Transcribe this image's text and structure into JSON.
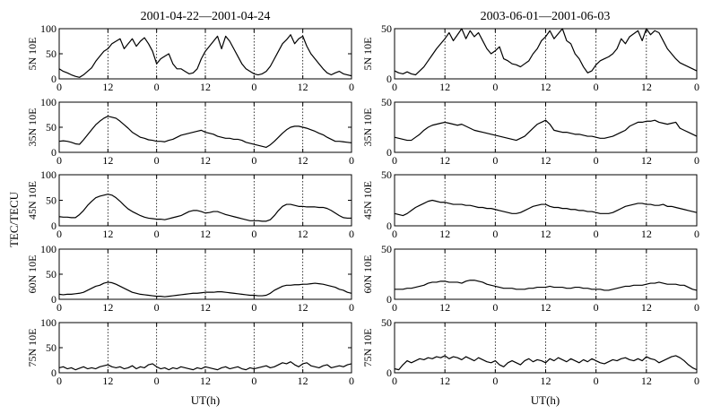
{
  "figure": {
    "ylabel": "TEC/TECU",
    "columns": [
      {
        "title": "2001-04-22—2001-04-24",
        "xlabel": "UT(h)"
      },
      {
        "title": "2003-06-01—2001-06-03",
        "xlabel": "UT(h)"
      }
    ]
  },
  "chart_data": [
    {
      "type": "line",
      "column": 0,
      "row": 0,
      "ylabel": "5N 10E",
      "xlim": [
        0,
        72
      ],
      "ylim": [
        0,
        100
      ],
      "xticks": [
        0,
        12,
        24,
        36,
        48,
        60,
        72
      ],
      "xtick_labels": [
        "0",
        "12",
        "0",
        "12",
        "0",
        "12",
        "0"
      ],
      "yticks": [
        0,
        50,
        100
      ],
      "ytick_labels": [
        "0",
        "50",
        "100"
      ],
      "dotted_x": [
        12,
        24,
        36,
        48,
        60
      ],
      "series": [
        {
          "values": [
            20,
            15,
            12,
            8,
            5,
            3,
            8,
            15,
            22,
            35,
            45,
            55,
            60,
            70,
            75,
            80,
            60,
            70,
            80,
            65,
            75,
            82,
            70,
            55,
            30,
            40,
            45,
            50,
            30,
            20,
            20,
            15,
            10,
            12,
            20,
            40,
            55,
            65,
            75,
            85,
            60,
            85,
            75,
            60,
            45,
            30,
            20,
            15,
            10,
            8,
            10,
            15,
            25,
            40,
            55,
            70,
            78,
            88,
            70,
            80,
            85,
            65,
            50,
            40,
            30,
            20,
            12,
            8,
            12,
            15,
            10,
            8,
            6
          ]
        }
      ]
    },
    {
      "type": "line",
      "column": 0,
      "row": 1,
      "ylabel": "35N 10E",
      "xlim": [
        0,
        72
      ],
      "ylim": [
        0,
        100
      ],
      "xticks": [
        0,
        12,
        24,
        36,
        48,
        60,
        72
      ],
      "xtick_labels": [
        "0",
        "12",
        "0",
        "12",
        "0",
        "12",
        "0"
      ],
      "yticks": [
        0,
        50,
        100
      ],
      "ytick_labels": [
        "0",
        "50",
        "100"
      ],
      "dotted_x": [
        12,
        24,
        36,
        48,
        60
      ],
      "series": [
        {
          "values": [
            22,
            23,
            22,
            20,
            17,
            16,
            25,
            35,
            45,
            55,
            62,
            68,
            72,
            70,
            68,
            62,
            55,
            48,
            40,
            35,
            30,
            28,
            25,
            24,
            22,
            22,
            21,
            24,
            26,
            30,
            34,
            36,
            38,
            40,
            42,
            44,
            40,
            38,
            36,
            32,
            30,
            28,
            28,
            26,
            26,
            24,
            20,
            18,
            16,
            14,
            12,
            10,
            15,
            22,
            30,
            38,
            45,
            50,
            52,
            52,
            50,
            48,
            45,
            42,
            38,
            35,
            30,
            26,
            22,
            22,
            21,
            20,
            19
          ]
        }
      ]
    },
    {
      "type": "line",
      "column": 0,
      "row": 2,
      "ylabel": "45N 10E",
      "xlim": [
        0,
        72
      ],
      "ylim": [
        0,
        100
      ],
      "xticks": [
        0,
        12,
        24,
        36,
        48,
        60,
        72
      ],
      "xtick_labels": [
        "0",
        "12",
        "0",
        "12",
        "0",
        "12",
        "0"
      ],
      "yticks": [
        0,
        50,
        100
      ],
      "ytick_labels": [
        "0",
        "50",
        "100"
      ],
      "dotted_x": [
        12,
        24,
        36,
        48,
        60
      ],
      "series": [
        {
          "values": [
            18,
            17,
            17,
            16,
            16,
            22,
            30,
            40,
            48,
            55,
            58,
            60,
            62,
            60,
            55,
            48,
            40,
            33,
            28,
            24,
            20,
            17,
            15,
            14,
            13,
            13,
            12,
            14,
            16,
            18,
            20,
            24,
            28,
            30,
            30,
            28,
            25,
            26,
            28,
            28,
            25,
            22,
            20,
            18,
            16,
            14,
            12,
            10,
            10,
            10,
            9,
            9,
            12,
            20,
            30,
            38,
            42,
            42,
            40,
            38,
            38,
            37,
            37,
            37,
            36,
            36,
            34,
            30,
            25,
            20,
            16,
            15,
            15
          ]
        }
      ]
    },
    {
      "type": "line",
      "column": 0,
      "row": 3,
      "ylabel": "60N 10E",
      "xlim": [
        0,
        72
      ],
      "ylim": [
        0,
        100
      ],
      "xticks": [
        0,
        12,
        24,
        36,
        48,
        60,
        72
      ],
      "xtick_labels": [
        "0",
        "12",
        "0",
        "12",
        "0",
        "12",
        "0"
      ],
      "yticks": [
        0,
        50,
        100
      ],
      "ytick_labels": [
        "0",
        "50",
        "100"
      ],
      "dotted_x": [
        12,
        24,
        36,
        48,
        60
      ],
      "series": [
        {
          "values": [
            10,
            9,
            10,
            10,
            11,
            12,
            14,
            18,
            22,
            26,
            28,
            32,
            34,
            33,
            30,
            26,
            22,
            18,
            14,
            12,
            10,
            9,
            8,
            7,
            6,
            6,
            5,
            6,
            7,
            8,
            9,
            10,
            11,
            12,
            12,
            13,
            14,
            14,
            14,
            15,
            15,
            14,
            13,
            12,
            11,
            10,
            9,
            8,
            8,
            7,
            7,
            8,
            12,
            18,
            22,
            26,
            28,
            28,
            29,
            29,
            30,
            30,
            31,
            32,
            31,
            30,
            28,
            26,
            24,
            20,
            18,
            14,
            12
          ]
        }
      ]
    },
    {
      "type": "line",
      "column": 0,
      "row": 4,
      "ylabel": "75N 10E",
      "xlim": [
        0,
        72
      ],
      "ylim": [
        0,
        100
      ],
      "xticks": [
        0,
        12,
        24,
        36,
        48,
        60,
        72
      ],
      "xtick_labels": [
        "0",
        "12",
        "0",
        "12",
        "0",
        "12",
        "0"
      ],
      "yticks": [
        0,
        50,
        100
      ],
      "ytick_labels": [
        "0",
        "50",
        "100"
      ],
      "dotted_x": [
        12,
        24,
        36,
        48,
        60
      ],
      "series": [
        {
          "values": [
            10,
            12,
            8,
            10,
            6,
            9,
            12,
            8,
            10,
            8,
            12,
            14,
            16,
            12,
            10,
            12,
            8,
            10,
            14,
            8,
            12,
            10,
            16,
            18,
            12,
            8,
            10,
            6,
            10,
            8,
            12,
            10,
            8,
            6,
            10,
            8,
            12,
            10,
            8,
            6,
            10,
            12,
            8,
            10,
            12,
            8,
            6,
            10,
            8,
            10,
            12,
            14,
            10,
            12,
            16,
            20,
            18,
            22,
            16,
            12,
            18,
            20,
            14,
            12,
            10,
            14,
            16,
            10,
            12,
            14,
            12,
            16,
            18
          ]
        }
      ]
    },
    {
      "type": "line",
      "column": 1,
      "row": 0,
      "ylabel": "5N 10E",
      "xlim": [
        0,
        72
      ],
      "ylim": [
        0,
        50
      ],
      "xticks": [
        0,
        12,
        24,
        36,
        48,
        60,
        72
      ],
      "xtick_labels": [
        "0",
        "12",
        "0",
        "12",
        "0",
        "12",
        "0"
      ],
      "yticks": [
        0,
        50
      ],
      "ytick_labels": [
        "0",
        "50"
      ],
      "dotted_x": [
        12,
        24,
        36,
        48,
        60
      ],
      "series": [
        {
          "values": [
            8,
            6,
            5,
            7,
            5,
            4,
            8,
            12,
            18,
            24,
            30,
            35,
            40,
            46,
            38,
            44,
            50,
            40,
            48,
            42,
            46,
            38,
            30,
            25,
            28,
            32,
            20,
            18,
            15,
            14,
            12,
            15,
            18,
            25,
            30,
            38,
            42,
            48,
            40,
            45,
            50,
            38,
            35,
            25,
            20,
            12,
            6,
            8,
            14,
            18,
            20,
            22,
            25,
            30,
            40,
            35,
            42,
            45,
            48,
            38,
            50,
            44,
            48,
            46,
            38,
            30,
            25,
            20,
            16,
            14,
            12,
            10,
            8
          ]
        }
      ]
    },
    {
      "type": "line",
      "column": 1,
      "row": 1,
      "ylabel": "35N 10E",
      "xlim": [
        0,
        72
      ],
      "ylim": [
        0,
        50
      ],
      "xticks": [
        0,
        12,
        24,
        36,
        48,
        60,
        72
      ],
      "xtick_labels": [
        "0",
        "12",
        "0",
        "12",
        "0",
        "12",
        "0"
      ],
      "yticks": [
        0,
        50
      ],
      "ytick_labels": [
        "0",
        "50"
      ],
      "dotted_x": [
        12,
        24,
        36,
        48,
        60
      ],
      "series": [
        {
          "values": [
            15,
            14,
            13,
            12,
            12,
            15,
            18,
            22,
            25,
            27,
            28,
            29,
            30,
            29,
            28,
            27,
            28,
            26,
            24,
            22,
            21,
            20,
            19,
            18,
            17,
            16,
            15,
            14,
            13,
            12,
            14,
            16,
            20,
            24,
            28,
            30,
            32,
            28,
            22,
            21,
            20,
            20,
            19,
            18,
            18,
            17,
            16,
            16,
            15,
            14,
            14,
            15,
            16,
            18,
            20,
            22,
            26,
            28,
            30,
            30,
            31,
            31,
            32,
            30,
            29,
            28,
            29,
            30,
            24,
            22,
            20,
            18,
            16
          ]
        }
      ]
    },
    {
      "type": "line",
      "column": 1,
      "row": 2,
      "ylabel": "45N 10E",
      "xlim": [
        0,
        72
      ],
      "ylim": [
        0,
        50
      ],
      "xticks": [
        0,
        12,
        24,
        36,
        48,
        60,
        72
      ],
      "xtick_labels": [
        "0",
        "12",
        "0",
        "12",
        "0",
        "12",
        "0"
      ],
      "yticks": [
        0,
        50
      ],
      "ytick_labels": [
        "0",
        "50"
      ],
      "dotted_x": [
        12,
        24,
        36,
        48,
        60
      ],
      "series": [
        {
          "values": [
            12,
            11,
            10,
            12,
            15,
            18,
            20,
            22,
            24,
            25,
            24,
            23,
            23,
            22,
            21,
            21,
            21,
            20,
            20,
            19,
            18,
            18,
            17,
            17,
            16,
            15,
            14,
            13,
            12,
            12,
            13,
            15,
            17,
            19,
            20,
            21,
            21,
            19,
            18,
            18,
            17,
            17,
            16,
            16,
            15,
            15,
            14,
            14,
            13,
            12,
            12,
            12,
            13,
            15,
            17,
            19,
            20,
            21,
            22,
            22,
            21,
            21,
            20,
            20,
            21,
            19,
            19,
            18,
            17,
            16,
            15,
            14,
            13
          ]
        }
      ]
    },
    {
      "type": "line",
      "column": 1,
      "row": 3,
      "ylabel": "60N 10E",
      "xlim": [
        0,
        72
      ],
      "ylim": [
        0,
        50
      ],
      "xticks": [
        0,
        12,
        24,
        36,
        48,
        60,
        72
      ],
      "xtick_labels": [
        "0",
        "12",
        "0",
        "12",
        "0",
        "12",
        "0"
      ],
      "yticks": [
        0,
        50
      ],
      "ytick_labels": [
        "0",
        "50"
      ],
      "dotted_x": [
        12,
        24,
        36,
        48,
        60
      ],
      "series": [
        {
          "values": [
            10,
            10,
            10,
            11,
            11,
            12,
            13,
            14,
            16,
            17,
            17,
            18,
            18,
            17,
            17,
            17,
            16,
            18,
            19,
            19,
            18,
            17,
            15,
            14,
            13,
            12,
            11,
            11,
            11,
            10,
            10,
            10,
            11,
            11,
            12,
            12,
            12,
            13,
            12,
            12,
            12,
            11,
            11,
            12,
            12,
            11,
            11,
            10,
            10,
            10,
            9,
            9,
            10,
            11,
            12,
            13,
            13,
            14,
            14,
            14,
            15,
            16,
            16,
            17,
            16,
            15,
            15,
            15,
            14,
            14,
            12,
            10,
            9
          ]
        }
      ]
    },
    {
      "type": "line",
      "column": 1,
      "row": 4,
      "ylabel": "75N 10E",
      "xlim": [
        0,
        72
      ],
      "ylim": [
        0,
        50
      ],
      "xticks": [
        0,
        12,
        24,
        36,
        48,
        60,
        72
      ],
      "xtick_labels": [
        "0",
        "12",
        "0",
        "12",
        "0",
        "12",
        "0"
      ],
      "yticks": [
        0,
        50
      ],
      "ytick_labels": [
        "0",
        "50"
      ],
      "dotted_x": [
        12,
        24,
        36,
        48,
        60
      ],
      "series": [
        {
          "values": [
            4,
            3,
            8,
            12,
            10,
            12,
            14,
            13,
            15,
            14,
            16,
            15,
            17,
            14,
            16,
            15,
            13,
            16,
            14,
            12,
            15,
            13,
            11,
            10,
            12,
            8,
            6,
            10,
            12,
            10,
            8,
            12,
            14,
            11,
            13,
            12,
            10,
            14,
            12,
            15,
            13,
            11,
            14,
            12,
            10,
            13,
            11,
            14,
            12,
            10,
            9,
            11,
            13,
            12,
            14,
            15,
            13,
            12,
            14,
            12,
            16,
            14,
            13,
            10,
            12,
            14,
            16,
            17,
            15,
            12,
            8,
            5,
            3
          ]
        }
      ]
    }
  ]
}
